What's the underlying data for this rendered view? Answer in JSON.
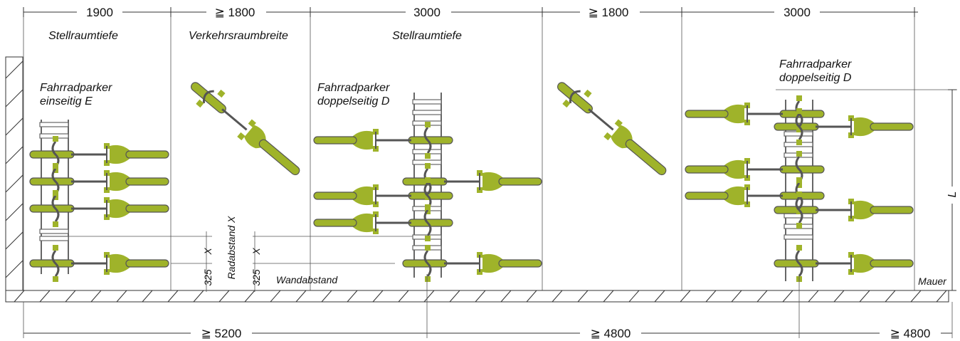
{
  "top_dimensions": [
    "1900",
    "≧ 1800",
    "3000",
    "≧ 1800",
    "3000"
  ],
  "zone_labels": {
    "stellraum_1": "Stellraumtiefe",
    "verkehrsraum": "Verkehrsraumbreite",
    "stellraum_2": "Stellraumtiefe"
  },
  "parker_labels": {
    "one_sided": [
      "Fahrradparker",
      "einseitig E"
    ],
    "double_sided_1": [
      "Fahrradparker",
      "doppelseitig D"
    ],
    "double_sided_2": [
      "Fahrradparker",
      "doppelseitig D"
    ]
  },
  "vertical_labels": {
    "radabstand": "Radabstand  X",
    "x_marker": "X",
    "dim_325": "325"
  },
  "wandabstand": "Wandabstand",
  "mauer": "Mauer",
  "length_label": "L",
  "bottom_dimensions": [
    "≧ 5200",
    "≧ 4800",
    "≧ 4800"
  ],
  "colors": {
    "bike": "#9fb32a",
    "rack": "#666666",
    "line": "#333333"
  }
}
